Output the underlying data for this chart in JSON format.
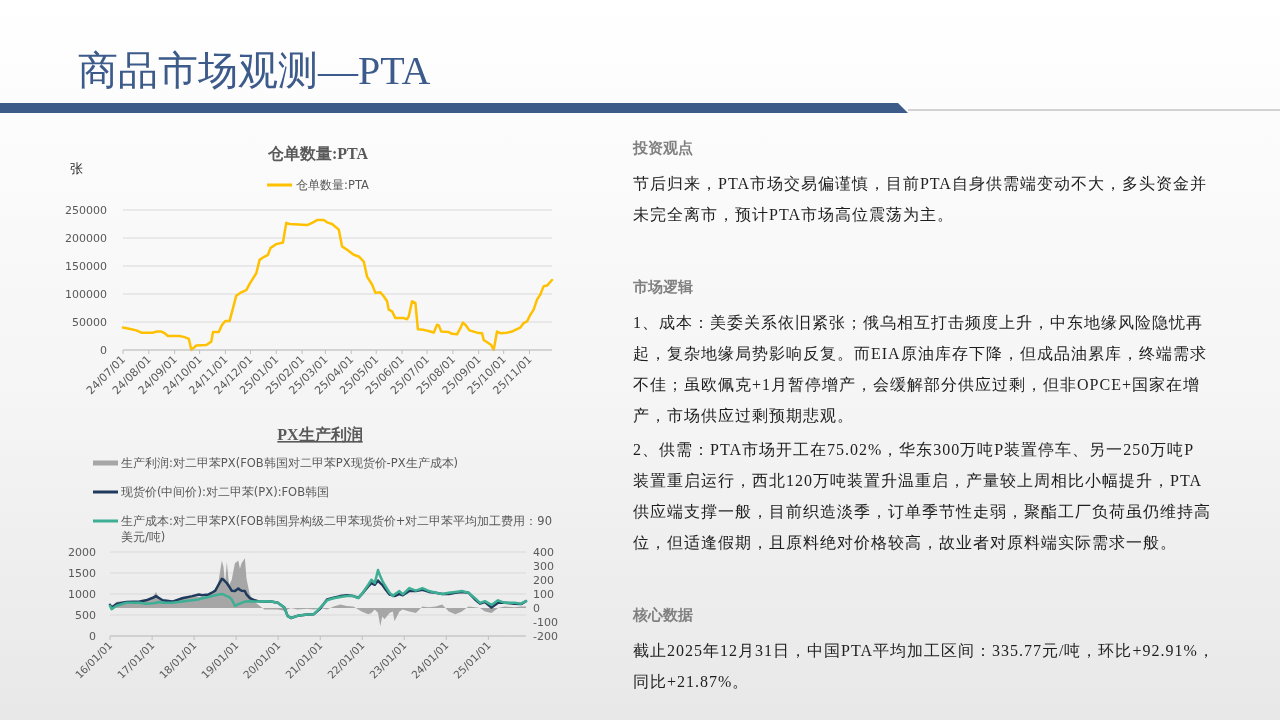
{
  "chart_data": [
    {
      "type": "other",
      "title": "商品市场观测—PTA"
    },
    {
      "type": "line",
      "title": "仓单数量:PTA",
      "ylabel": "张",
      "x": [
        "2024-07-01",
        "2024-07-11",
        "2024-07-17",
        "2024-07-23",
        "2024-08-06",
        "2024-08-11",
        "2024-08-16",
        "2024-08-20",
        "2024-08-24",
        "2024-09-07",
        "2024-09-13",
        "2024-09-18",
        "2024-09-21",
        "2024-09-27",
        "2024-10-09",
        "2024-10-15",
        "2024-10-17",
        "2024-10-24",
        "2024-10-28",
        "2024-11-01",
        "2024-11-06",
        "2024-11-14",
        "2024-11-20",
        "2024-11-26",
        "2024-11-30",
        "2024-12-08",
        "2024-12-12",
        "2024-12-17",
        "2024-12-22",
        "2024-12-25",
        "2025-01-01",
        "2025-01-09",
        "2025-01-13",
        "2025-01-17",
        "2025-02-07",
        "2025-02-13",
        "2025-02-19",
        "2025-02-27",
        "2025-03-03",
        "2025-03-09",
        "2025-03-17",
        "2025-03-21",
        "2025-03-27",
        "2025-04-04",
        "2025-04-10",
        "2025-04-16",
        "2025-04-20",
        "2025-04-26",
        "2025-04-30",
        "2025-05-06",
        "2025-05-10",
        "2025-05-14",
        "2025-05-16",
        "2025-05-20",
        "2025-05-24",
        "2025-06-03",
        "2025-06-07",
        "2025-06-09",
        "2025-06-13",
        "2025-06-17",
        "2025-06-20",
        "2025-06-27",
        "2025-07-05",
        "2025-07-09",
        "2025-07-13",
        "2025-07-15",
        "2025-07-18",
        "2025-07-27",
        "2025-07-31",
        "2025-08-06",
        "2025-08-10",
        "2025-08-13",
        "2025-08-16",
        "2025-08-21",
        "2025-08-30",
        "2025-09-05",
        "2025-09-07",
        "2025-09-13",
        "2025-09-16",
        "2025-09-19",
        "2025-09-23",
        "2025-09-27",
        "2025-10-05",
        "2025-10-11",
        "2025-10-15",
        "2025-10-21",
        "2025-10-25",
        "2025-10-29",
        "2025-11-02",
        "2025-11-06",
        "2025-11-10",
        "2025-11-14",
        "2025-11-18",
        "2025-11-22",
        "2025-11-28"
      ],
      "series": [
        {
          "name": "仓单数量:PTA",
          "color": "#ffc000",
          "values": [
            40000,
            37000,
            35000,
            31000,
            31000,
            33000,
            33000,
            30000,
            25000,
            25000,
            23000,
            20000,
            0,
            8000,
            9000,
            15000,
            32000,
            32000,
            45000,
            52000,
            52000,
            97000,
            103000,
            107000,
            118000,
            137000,
            161000,
            166000,
            170000,
            182000,
            189000,
            192000,
            227000,
            225000,
            223000,
            227000,
            232000,
            232000,
            228000,
            225000,
            215000,
            185000,
            179000,
            170000,
            167000,
            158000,
            131000,
            117000,
            102000,
            103000,
            96000,
            87000,
            72000,
            69000,
            57000,
            57000,
            55000,
            60000,
            87000,
            84000,
            37000,
            36000,
            33000,
            31000,
            45000,
            44000,
            33000,
            32000,
            29000,
            28000,
            39000,
            49000,
            45000,
            35000,
            31000,
            30000,
            18000,
            12000,
            9000,
            0,
            33000,
            30000,
            31000,
            33000,
            36000,
            40000,
            48000,
            51000,
            63000,
            72000,
            90000,
            99000,
            114000,
            115000,
            125000
          ]
        }
      ],
      "xlim": [
        "2024-07-01",
        "2025-11-28"
      ],
      "xticks": [
        {
          "value": "2024-07-01",
          "label": "24/07/01"
        },
        {
          "value": "2024-08-01",
          "label": "24/08/01"
        },
        {
          "value": "2024-09-01",
          "label": "24/09/01"
        },
        {
          "value": "2024-10-01",
          "label": "24/10/01"
        },
        {
          "value": "2024-11-01",
          "label": "24/11/01"
        },
        {
          "value": "2024-12-01",
          "label": "24/12/01"
        },
        {
          "value": "2025-01-01",
          "label": "25/01/01"
        },
        {
          "value": "2025-02-01",
          "label": "25/02/01"
        },
        {
          "value": "2025-03-01",
          "label": "25/03/01"
        },
        {
          "value": "2025-04-01",
          "label": "25/04/01"
        },
        {
          "value": "2025-05-01",
          "label": "25/05/01"
        },
        {
          "value": "2025-06-01",
          "label": "25/06/01"
        },
        {
          "value": "2025-07-01",
          "label": "25/07/01"
        },
        {
          "value": "2025-08-01",
          "label": "25/08/01"
        },
        {
          "value": "2025-09-01",
          "label": "25/09/01"
        },
        {
          "value": "2025-10-01",
          "label": "25/10/01"
        },
        {
          "value": "2025-11-01",
          "label": "25/11/01"
        }
      ],
      "ylim": [
        0,
        250000
      ],
      "yticks": [
        0,
        50000,
        100000,
        150000,
        200000,
        250000
      ],
      "grid": "y",
      "legend": "top"
    },
    {
      "type": "line",
      "title": "PX生产利润",
      "x": [
        "2016-01-01",
        "2016-01-15",
        "2016-02-27",
        "2016-05-23",
        "2016-09-14",
        "2016-11-10",
        "2017-01-07",
        "2017-02-04",
        "2017-03-05",
        "2017-04-02",
        "2017-06-27",
        "2017-09-21",
        "2017-12-16",
        "2018-02-11",
        "2018-03-11",
        "2018-05-07",
        "2018-06-05",
        "2018-07-04",
        "2018-08-01",
        "2018-08-30",
        "2018-09-13",
        "2018-09-27",
        "2018-10-12",
        "2018-11-01",
        "2018-11-23",
        "2018-12-22",
        "2019-01-20",
        "2019-02-03",
        "2019-02-17",
        "2019-03-18",
        "2019-04-01",
        "2019-04-30",
        "2019-06-12",
        "2019-07-10",
        "2019-09-05",
        "2019-11-01",
        "2019-12-29",
        "2020-02-24",
        "2020-03-23",
        "2020-04-21",
        "2020-06-17",
        "2020-09-11",
        "2020-11-07",
        "2021-01-03",
        "2021-03-01",
        "2021-04-27",
        "2021-06-24",
        "2021-08-20",
        "2021-10-16",
        "2021-11-28",
        "2021-12-26",
        "2022-02-22",
        "2022-03-22",
        "2022-04-20",
        "2022-05-18",
        "2022-06-07",
        "2022-06-24",
        "2022-07-14",
        "2022-08-26",
        "2022-09-24",
        "2022-10-08",
        "2022-11-20",
        "2022-12-19",
        "2023-02-14",
        "2023-04-12",
        "2023-06-08",
        "2023-08-04",
        "2023-10-01",
        "2023-11-27",
        "2024-01-23",
        "2024-03-20",
        "2024-05-16",
        "2024-07-12",
        "2024-09-07",
        "2024-10-20",
        "2024-12-02",
        "2025-01-28",
        "2025-03-26",
        "2025-05-23",
        "2025-08-16",
        "2025-10-12",
        "2025-11-24"
      ],
      "series": [
        {
          "name": "生产利润:对二甲苯PX(FOB韩国对二甲苯PX现货价-PX生产成本)",
          "type": "area",
          "axis": "y2",
          "color": "#a6a6a6",
          "values": [
            35,
            10,
            45,
            50,
            45,
            60,
            80,
            115,
            60,
            45,
            50,
            80,
            85,
            80,
            75,
            95,
            105,
            120,
            190,
            340,
            295,
            165,
            330,
            165,
            200,
            320,
            340,
            280,
            320,
            355,
            210,
            95,
            45,
            25,
            -10,
            -10,
            -10,
            -20,
            -10,
            0,
            -10,
            -5,
            -10,
            0,
            -10,
            10,
            25,
            15,
            10,
            -10,
            -25,
            -45,
            -35,
            -10,
            -35,
            -130,
            -60,
            -80,
            -35,
            -25,
            -95,
            -25,
            -10,
            -25,
            -35,
            10,
            5,
            10,
            25,
            -25,
            -45,
            -25,
            10,
            5,
            0,
            -25,
            -35,
            0,
            10,
            5,
            10,
            10
          ]
        },
        {
          "name": "现货价(中间价):对二甲苯(PX):FOB韩国",
          "color": "#1f3a5c",
          "values": [
            740,
            680,
            760,
            810,
            820,
            850,
            910,
            950,
            900,
            850,
            820,
            900,
            950,
            990,
            970,
            990,
            1030,
            1080,
            1220,
            1360,
            1340,
            1300,
            1260,
            1180,
            1080,
            1070,
            1130,
            1100,
            1080,
            1070,
            990,
            900,
            850,
            830,
            820,
            820,
            790,
            680,
            480,
            430,
            480,
            510,
            520,
            660,
            870,
            910,
            950,
            970,
            950,
            910,
            990,
            1180,
            1260,
            1220,
            1320,
            1260,
            1220,
            1140,
            990,
            970,
            950,
            1000,
            970,
            1070,
            1070,
            1100,
            1050,
            1030,
            1000,
            1000,
            1030,
            1050,
            1030,
            870,
            770,
            810,
            680,
            790,
            790,
            770,
            760,
            830
          ]
        },
        {
          "name": "生产成本:对二甲苯PX(FOB韩国异构级二甲苯现货价+对二甲苯平均加工费用：90美元/吨)",
          "color": "#3caf94",
          "values": [
            720,
            640,
            720,
            790,
            790,
            770,
            780,
            790,
            810,
            790,
            790,
            820,
            850,
            870,
            900,
            930,
            950,
            970,
            990,
            1000,
            990,
            970,
            950,
            930,
            870,
            720,
            760,
            770,
            790,
            820,
            820,
            830,
            820,
            820,
            830,
            820,
            790,
            680,
            480,
            430,
            480,
            510,
            520,
            680,
            850,
            900,
            930,
            950,
            950,
            900,
            990,
            1220,
            1340,
            1260,
            1570,
            1420,
            1320,
            1220,
            1030,
            950,
            990,
            1070,
            990,
            1140,
            1080,
            1140,
            1070,
            1030,
            1000,
            1030,
            1050,
            1070,
            1030,
            900,
            790,
            830,
            740,
            850,
            790,
            790,
            770,
            830
          ]
        }
      ],
      "xlim": [
        "2016-01-01",
        "2025-11-24"
      ],
      "xticks": [
        {
          "value": "2016-01-01",
          "label": "16/01/01"
        },
        {
          "value": "2017-01-01",
          "label": "17/01/01"
        },
        {
          "value": "2018-01-01",
          "label": "18/01/01"
        },
        {
          "value": "2019-01-01",
          "label": "19/01/01"
        },
        {
          "value": "2020-01-01",
          "label": "20/01/01"
        },
        {
          "value": "2021-01-01",
          "label": "21/01/01"
        },
        {
          "value": "2022-01-01",
          "label": "22/01/01"
        },
        {
          "value": "2023-01-01",
          "label": "23/01/01"
        },
        {
          "value": "2024-01-01",
          "label": "24/01/01"
        },
        {
          "value": "2025-01-01",
          "label": "25/01/01"
        }
      ],
      "ylim": [
        0,
        2000
      ],
      "yticks": [
        0,
        500,
        1000,
        1500,
        2000
      ],
      "y2lim": [
        -200,
        400
      ],
      "y2ticks": [
        -200,
        -100,
        0,
        100,
        200,
        300,
        400
      ],
      "grid": "y",
      "legend": "top"
    },
    {
      "type": "other",
      "title": "投资观点",
      "annotations": [
        "节后归来，PTA市场交易偏谨慎，目前PTA自身供需端变动不大，多头资金并未完全离市，预计PTA市场高位震荡为主。"
      ]
    },
    {
      "type": "other",
      "title": "市场逻辑",
      "annotations": [
        "1、成本：美委关系依旧紧张；俄乌相互打击频度上升，中东地缘风险隐忧再起，复杂地缘局势影响反复。而EIA原油库存下降，但成品油累库，终端需求不佳；虽欧佩克+1月暂停增产，会缓解部分供应过剩，但非OPCE+国家在增产，市场供应过剩预期悲观。",
        "2、供需：PTA市场开工在75.02%，华东300万吨P装置停车、另一250万吨P装置重启运行，西北120万吨装置升温重启，产量较上周相比小幅提升，PTA供应端支撑一般，目前织造淡季，订单季节性走弱，聚酯工厂负荷虽仍维持高位，但适逢假期，且原料绝对价格较高，故业者对原料端实际需求一般。"
      ]
    },
    {
      "type": "other",
      "title": "核心数据",
      "annotations": [
        "截止2025年12月31日，中国PTA平均加工区间：335.77元/吨，环比+92.91%，同比+21.87%。"
      ]
    }
  ]
}
